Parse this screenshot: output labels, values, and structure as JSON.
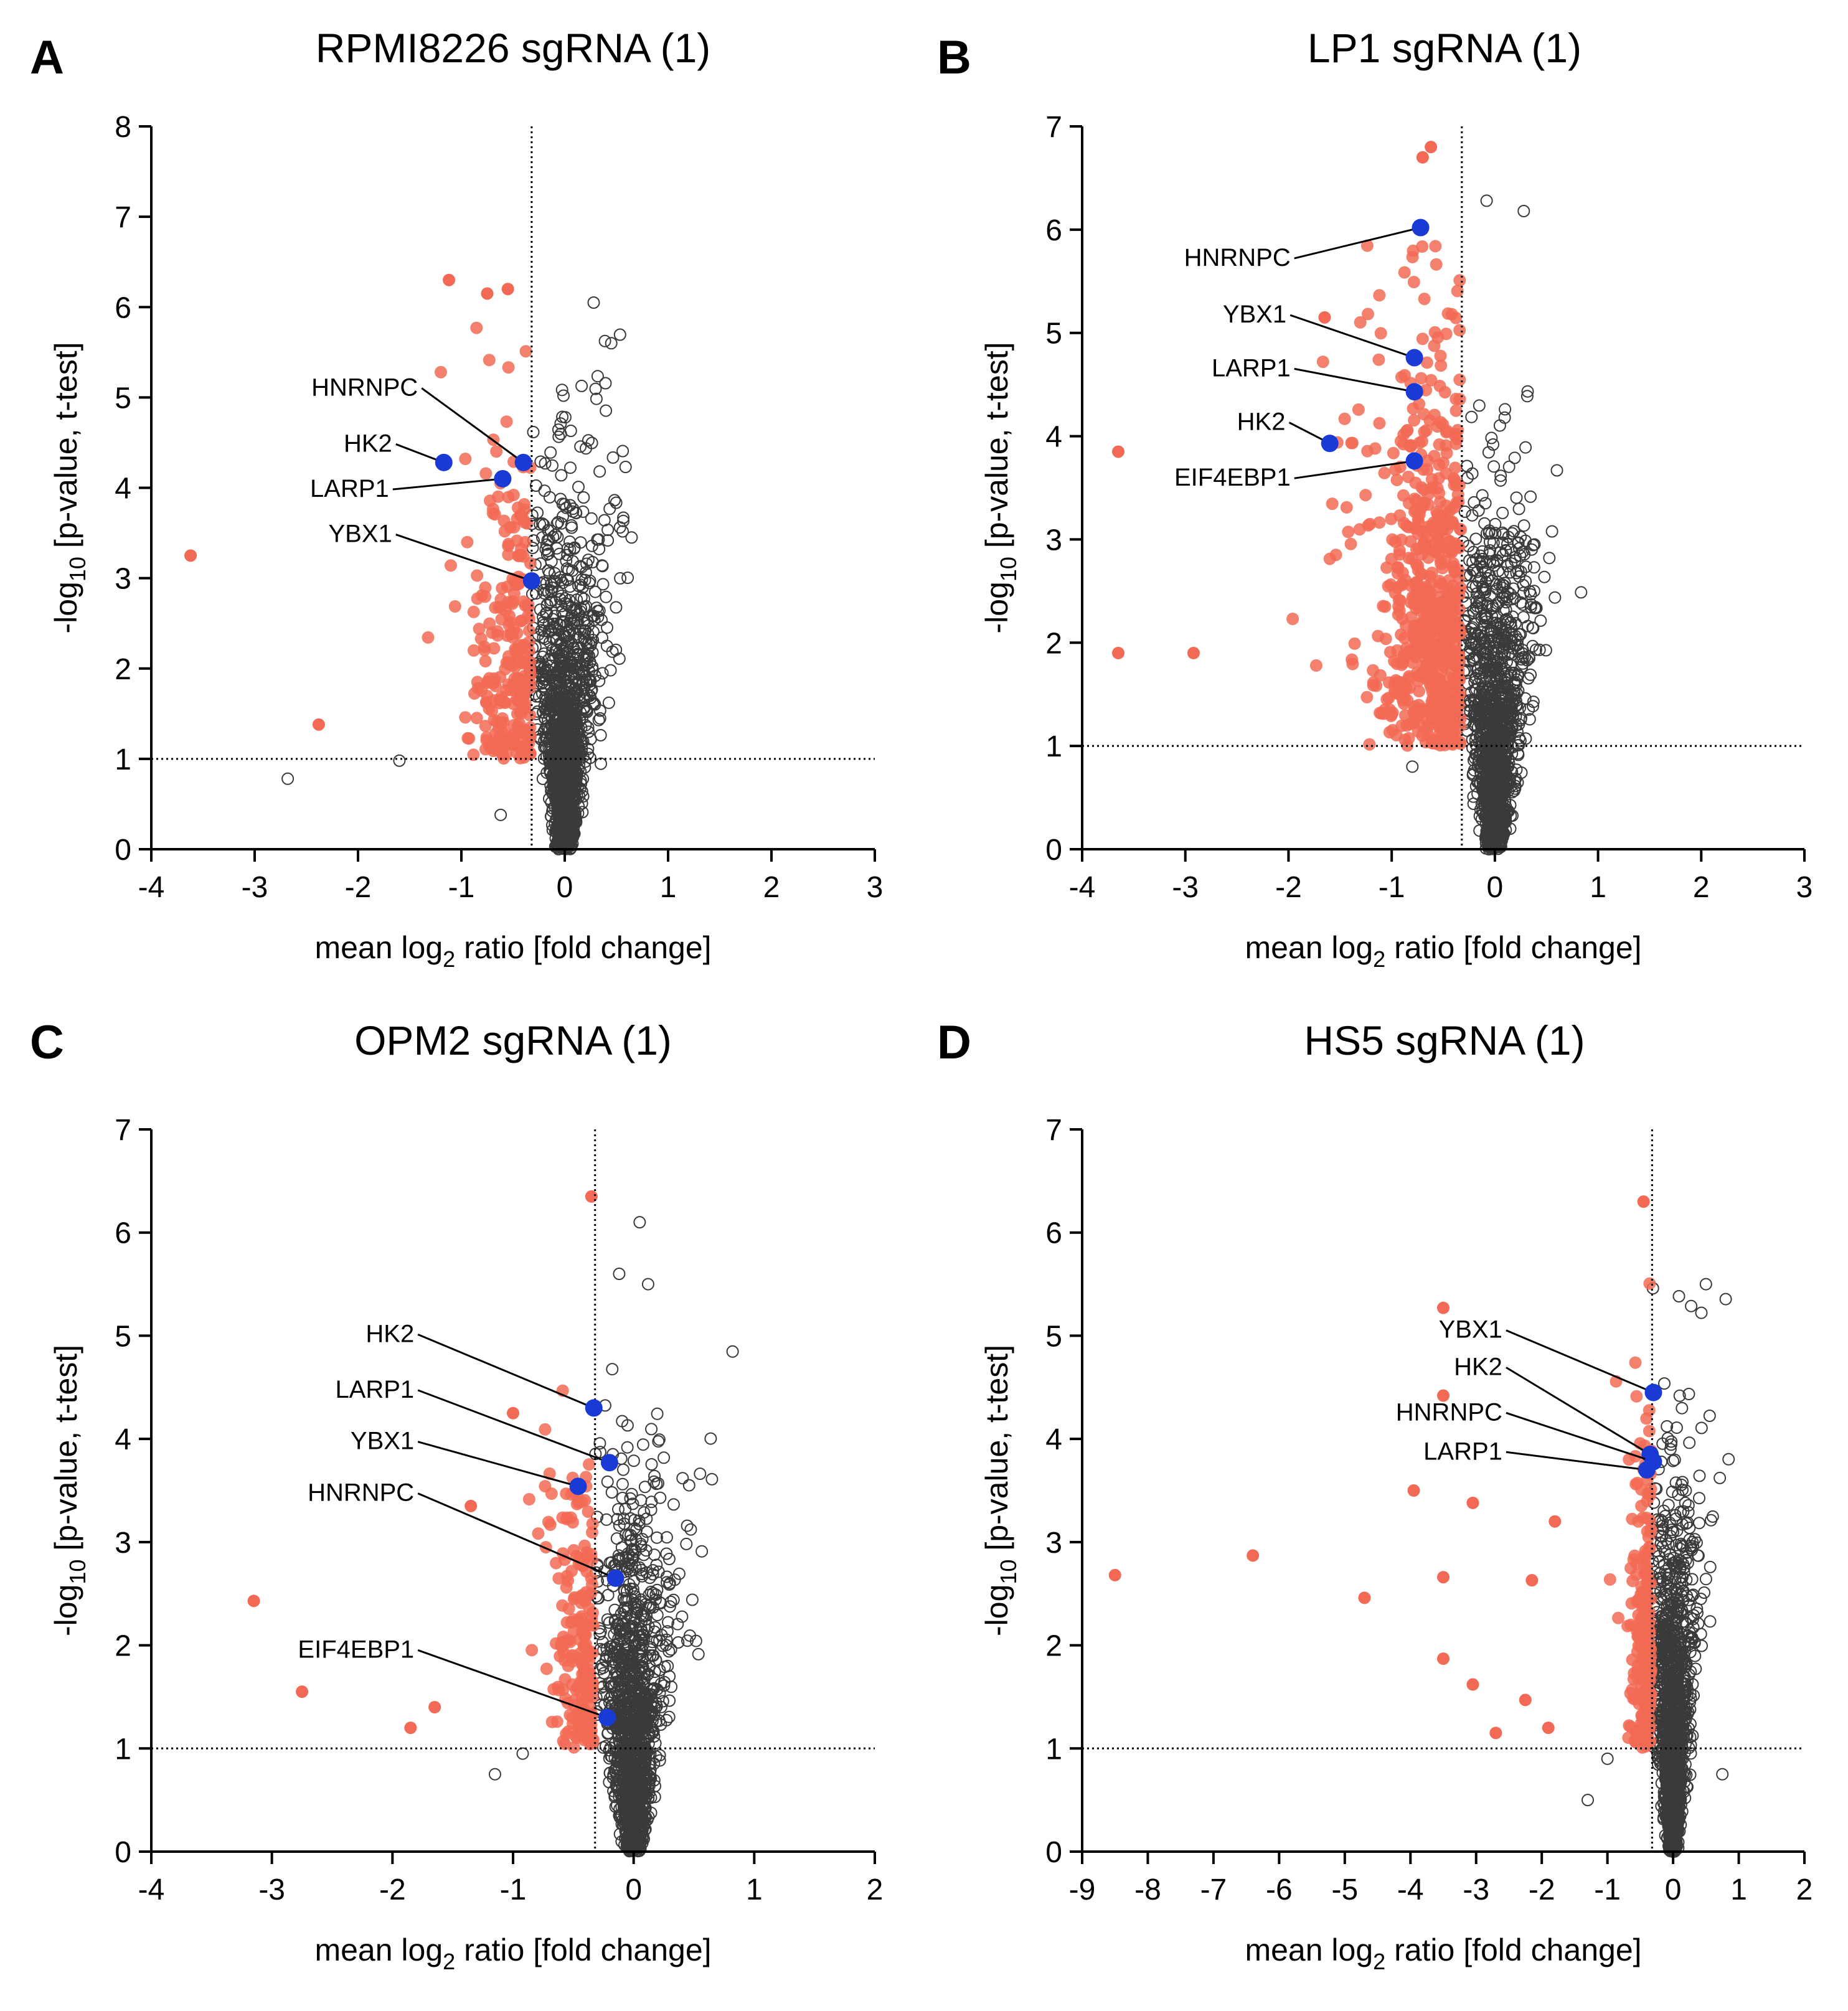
{
  "figure": {
    "panels": [
      {
        "letter": "A",
        "title": "RPMI8226 sgRNA (1)",
        "xlabel": {
          "pre": "mean log",
          "sub": "2",
          "post": " ratio [fold change]"
        },
        "ylabel": {
          "pre": "-log",
          "sub": "10",
          "post": " [p-value, t-test]"
        }
      },
      {
        "letter": "B",
        "title": "LP1 sgRNA (1)",
        "xlabel": {
          "pre": "mean log",
          "sub": "2",
          "post": " ratio [fold change]"
        },
        "ylabel": {
          "pre": "-log",
          "sub": "10",
          "post": " [p-value, t-test]"
        }
      },
      {
        "letter": "C",
        "title": "OPM2 sgRNA (1)",
        "xlabel": {
          "pre": "mean log",
          "sub": "2",
          "post": " ratio [fold change]"
        },
        "ylabel": {
          "pre": "-log",
          "sub": "10",
          "post": " [p-value, t-test]"
        }
      },
      {
        "letter": "D",
        "title": "HS5 sgRNA (1)",
        "xlabel": {
          "pre": "mean log",
          "sub": "2",
          "post": " ratio [fold change]"
        },
        "ylabel": {
          "pre": "-log",
          "sub": "10",
          "post": " [p-value, t-test]"
        }
      }
    ]
  },
  "chart_data": [
    {
      "type": "scatter",
      "title": "RPMI8226 sgRNA (1)",
      "xlabel": "mean log2 ratio [fold change]",
      "ylabel": "-log10 [p-value, t-test]",
      "xlim": [
        -4,
        3
      ],
      "ylim": [
        0,
        8
      ],
      "xticks": [
        -4,
        -3,
        -2,
        -1,
        0,
        1,
        2,
        3
      ],
      "yticks": [
        0,
        1,
        2,
        3,
        4,
        5,
        6,
        7,
        8
      ],
      "threshold_x": -0.32,
      "threshold_y": 1,
      "grid": false,
      "significant_outliers": [
        [
          -3.62,
          3.25
        ],
        [
          -2.38,
          1.38
        ],
        [
          -1.12,
          6.3
        ],
        [
          -0.75,
          6.15
        ],
        [
          -0.55,
          6.2
        ]
      ],
      "nonsignificant_outliers": [
        [
          -2.68,
          0.78
        ],
        [
          -1.6,
          0.98
        ],
        [
          -0.62,
          0.38
        ],
        [
          0.28,
          6.05
        ],
        [
          0.45,
          5.6
        ]
      ],
      "highlighted_genes": [
        {
          "name": "HNRNPC",
          "x": -0.4,
          "y": 4.28,
          "label_x": -1.42,
          "label_y": 5.02
        },
        {
          "name": "HK2",
          "x": -1.17,
          "y": 4.28,
          "label_x": -1.67,
          "label_y": 4.4
        },
        {
          "name": "LARP1",
          "x": -0.6,
          "y": 4.1,
          "label_x": -1.7,
          "label_y": 3.9
        },
        {
          "name": "YBX1",
          "x": -0.32,
          "y": 2.97,
          "label_x": -1.67,
          "label_y": 3.4
        }
      ]
    },
    {
      "type": "scatter",
      "title": "LP1 sgRNA (1)",
      "xlabel": "mean log2 ratio [fold change]",
      "ylabel": "-log10 [p-value, t-test]",
      "xlim": [
        -4,
        3
      ],
      "ylim": [
        0,
        7
      ],
      "xticks": [
        -4,
        -3,
        -2,
        -1,
        0,
        1,
        2,
        3
      ],
      "yticks": [
        0,
        1,
        2,
        3,
        4,
        5,
        6,
        7
      ],
      "threshold_x": -0.32,
      "threshold_y": 1,
      "grid": false,
      "significant_outliers": [
        [
          -3.65,
          3.85
        ],
        [
          -3.65,
          1.9
        ],
        [
          -2.92,
          1.9
        ],
        [
          -1.65,
          5.15
        ],
        [
          -0.62,
          6.8
        ],
        [
          -0.7,
          6.7
        ]
      ],
      "nonsignificant_outliers": [
        [
          0.28,
          6.18
        ],
        [
          -0.08,
          6.28
        ],
        [
          -0.8,
          0.8
        ]
      ],
      "highlighted_genes": [
        {
          "name": "HNRNPC",
          "x": -0.72,
          "y": 6.02,
          "label_x": -1.98,
          "label_y": 5.65
        },
        {
          "name": "YBX1",
          "x": -0.78,
          "y": 4.76,
          "label_x": -2.02,
          "label_y": 5.1
        },
        {
          "name": "LARP1",
          "x": -0.78,
          "y": 4.43,
          "label_x": -1.98,
          "label_y": 4.58
        },
        {
          "name": "HK2",
          "x": -1.6,
          "y": 3.93,
          "label_x": -2.03,
          "label_y": 4.06
        },
        {
          "name": "EIF4EBP1",
          "x": -0.78,
          "y": 3.76,
          "label_x": -1.98,
          "label_y": 3.52
        }
      ]
    },
    {
      "type": "scatter",
      "title": "OPM2 sgRNA (1)",
      "xlabel": "mean log2 ratio [fold change]",
      "ylabel": "-log10 [p-value, t-test]",
      "xlim": [
        -4,
        2
      ],
      "ylim": [
        0,
        7
      ],
      "xticks": [
        -4,
        -3,
        -2,
        -1,
        0,
        1,
        2
      ],
      "yticks": [
        0,
        1,
        2,
        3,
        4,
        5,
        6,
        7
      ],
      "threshold_x": -0.32,
      "threshold_y": 1,
      "grid": false,
      "significant_outliers": [
        [
          -3.15,
          2.43
        ],
        [
          -2.75,
          1.55
        ],
        [
          -1.85,
          1.2
        ],
        [
          -1.65,
          1.4
        ],
        [
          -1.35,
          3.35
        ],
        [
          -0.35,
          6.35
        ],
        [
          -1.0,
          4.25
        ]
      ],
      "nonsignificant_outliers": [
        [
          -1.15,
          0.75
        ],
        [
          -0.92,
          0.95
        ],
        [
          0.05,
          6.1
        ],
        [
          0.12,
          5.5
        ],
        [
          -0.12,
          5.6
        ]
      ],
      "highlighted_genes": [
        {
          "name": "HK2",
          "x": -0.33,
          "y": 4.3,
          "label_x": -1.82,
          "label_y": 4.94
        },
        {
          "name": "LARP1",
          "x": -0.2,
          "y": 3.77,
          "label_x": -1.82,
          "label_y": 4.4
        },
        {
          "name": "YBX1",
          "x": -0.46,
          "y": 3.54,
          "label_x": -1.82,
          "label_y": 3.9
        },
        {
          "name": "HNRNPC",
          "x": -0.15,
          "y": 2.65,
          "label_x": -1.82,
          "label_y": 3.4
        },
        {
          "name": "EIF4EBP1",
          "x": -0.22,
          "y": 1.3,
          "label_x": -1.82,
          "label_y": 1.88
        }
      ]
    },
    {
      "type": "scatter",
      "title": "HS5 sgRNA (1)",
      "xlabel": "mean log2 ratio [fold change]",
      "ylabel": "-log10 [p-value, t-test]",
      "xlim": [
        -9,
        2
      ],
      "ylim": [
        0,
        7
      ],
      "xticks": [
        -9,
        -8,
        -7,
        -6,
        -5,
        -4,
        -3,
        -2,
        -1,
        0,
        1,
        2
      ],
      "yticks": [
        0,
        1,
        2,
        3,
        4,
        5,
        6,
        7
      ],
      "threshold_x": -0.32,
      "threshold_y": 1,
      "grid": false,
      "significant_outliers": [
        [
          -8.5,
          2.68
        ],
        [
          -6.4,
          2.87
        ],
        [
          -4.7,
          2.46
        ],
        [
          -3.95,
          3.5
        ],
        [
          -3.5,
          5.27
        ],
        [
          -3.5,
          4.42
        ],
        [
          -3.5,
          2.66
        ],
        [
          -3.5,
          1.87
        ],
        [
          -3.05,
          3.38
        ],
        [
          -3.05,
          1.62
        ],
        [
          -2.7,
          1.15
        ],
        [
          -2.15,
          2.63
        ],
        [
          -2.25,
          1.47
        ],
        [
          -1.8,
          3.2
        ],
        [
          -1.9,
          1.2
        ],
        [
          -0.45,
          6.3
        ]
      ],
      "nonsignificant_outliers": [
        [
          -1.3,
          0.5
        ],
        [
          -1.0,
          0.9
        ],
        [
          0.5,
          5.5
        ],
        [
          0.75,
          0.75
        ]
      ],
      "highlighted_genes": [
        {
          "name": "YBX1",
          "x": -0.3,
          "y": 4.45,
          "label_x": -2.6,
          "label_y": 4.98
        },
        {
          "name": "HK2",
          "x": -0.35,
          "y": 3.85,
          "label_x": -2.6,
          "label_y": 4.62
        },
        {
          "name": "HNRNPC",
          "x": -0.3,
          "y": 3.78,
          "label_x": -2.6,
          "label_y": 4.18
        },
        {
          "name": "LARP1",
          "x": -0.4,
          "y": 3.7,
          "label_x": -2.6,
          "label_y": 3.8
        }
      ]
    }
  ]
}
